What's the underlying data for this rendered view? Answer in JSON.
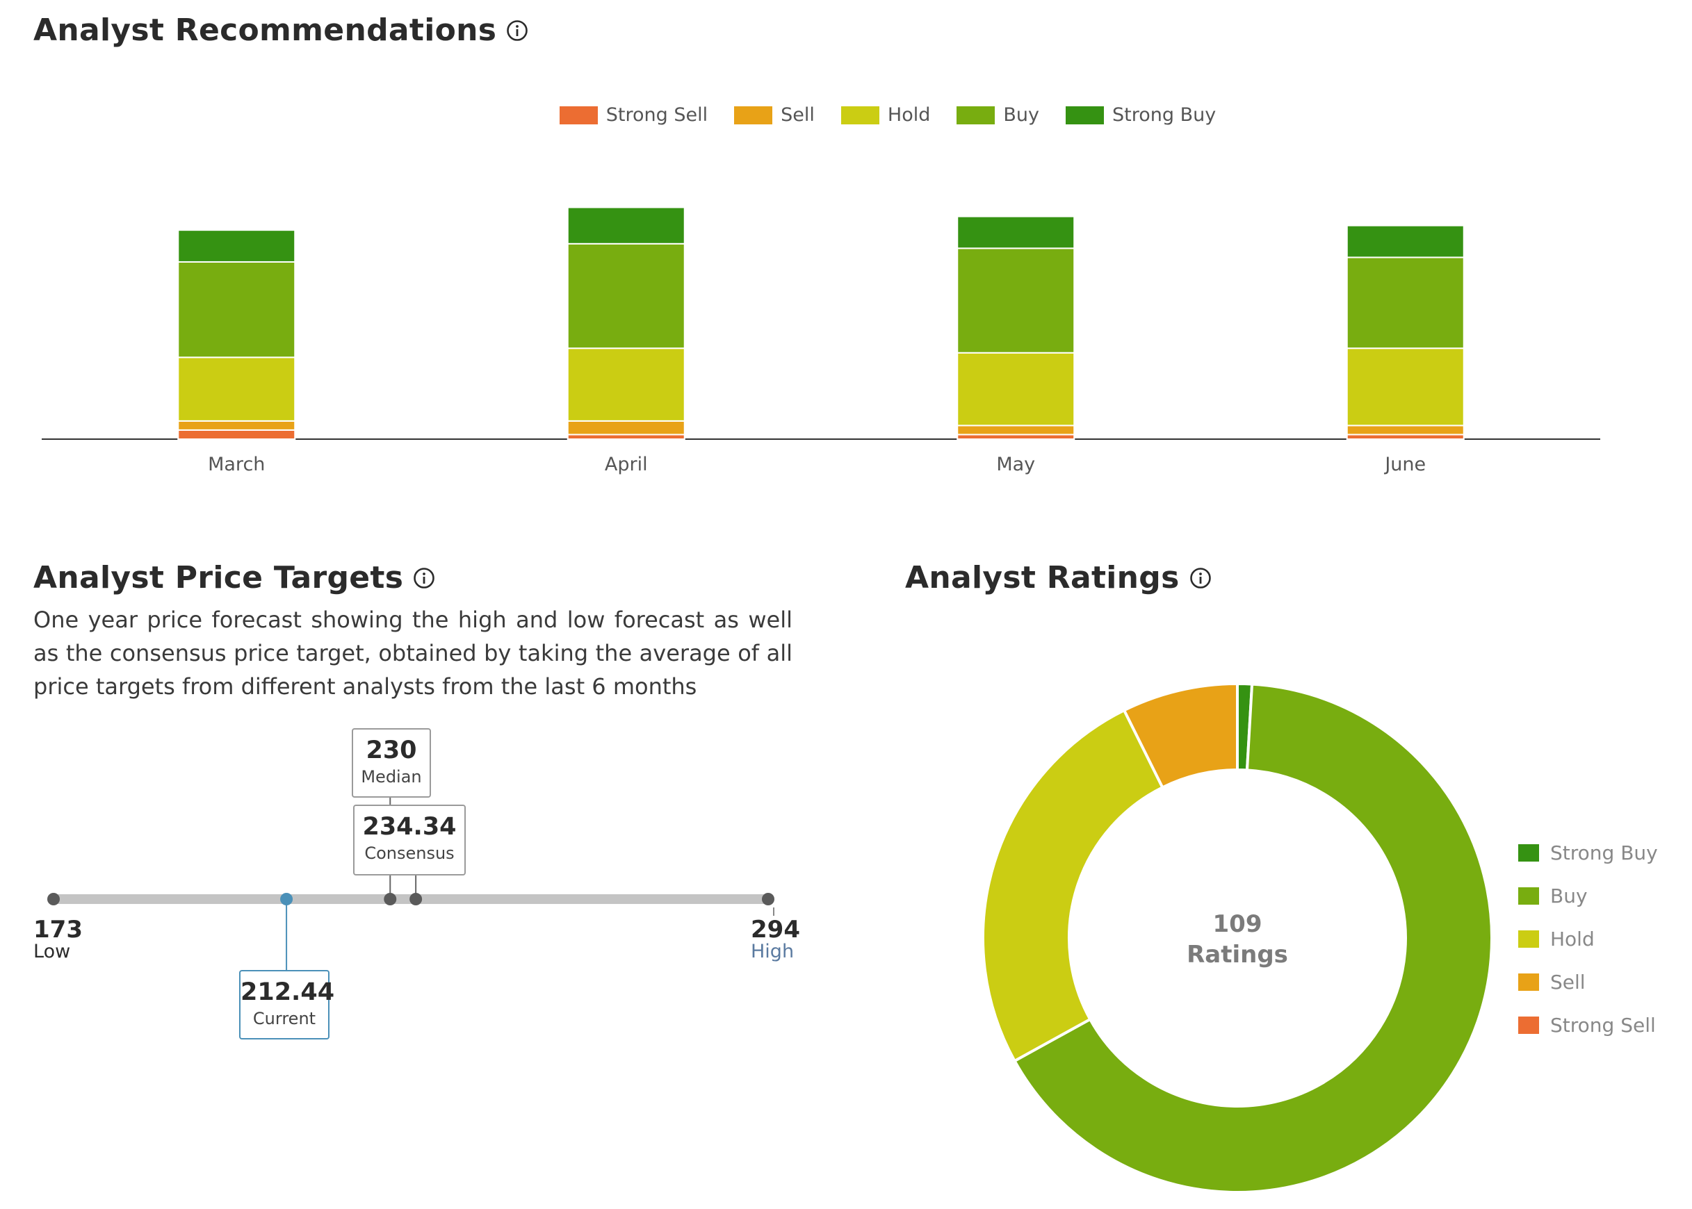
{
  "colors": {
    "strong_sell": "#ec6d32",
    "sell": "#e8a217",
    "hold": "#cbcd13",
    "buy": "#78ad10",
    "strong_buy": "#359212"
  },
  "recommendations": {
    "title": "Analyst Recommendations",
    "legend": [
      "Strong Sell",
      "Sell",
      "Hold",
      "Buy",
      "Strong Buy"
    ]
  },
  "price_targets": {
    "title": "Analyst Price Targets",
    "description": "One year price forecast showing the high and low forecast as well as the consensus price target, obtained by taking the average of all price targets from different analysts from the last 6 months",
    "low": {
      "value": "173",
      "label": "Low"
    },
    "high": {
      "value": "294",
      "label": "High"
    },
    "median": {
      "value": "230",
      "label": "Median"
    },
    "consensus": {
      "value": "234.34",
      "label": "Consensus"
    },
    "current": {
      "value": "212.44",
      "label": "Current"
    }
  },
  "ratings": {
    "title": "Analyst Ratings",
    "total": "109",
    "total_label": "Ratings",
    "legend": [
      "Strong Buy",
      "Buy",
      "Hold",
      "Sell",
      "Strong Sell"
    ]
  },
  "chart_data": [
    {
      "type": "bar",
      "stacked": true,
      "title": "Analyst Recommendations",
      "categories": [
        "March",
        "April",
        "May",
        "June"
      ],
      "series": [
        {
          "name": "Strong Sell",
          "values": [
            2,
            1,
            1,
            1
          ]
        },
        {
          "name": "Sell",
          "values": [
            2,
            3,
            2,
            2
          ]
        },
        {
          "name": "Hold",
          "values": [
            14,
            16,
            16,
            17
          ]
        },
        {
          "name": "Buy",
          "values": [
            21,
            23,
            23,
            20
          ]
        },
        {
          "name": "Strong Buy",
          "values": [
            7,
            8,
            7,
            7
          ]
        }
      ],
      "legend_position": "top",
      "grid": false
    },
    {
      "type": "range",
      "title": "Analyst Price Targets",
      "low": 173,
      "high": 294,
      "median": 230,
      "consensus": 234.34,
      "current": 212.44
    },
    {
      "type": "pie",
      "donut": true,
      "title": "Analyst Ratings",
      "categories": [
        "Strong Buy",
        "Buy",
        "Hold",
        "Sell",
        "Strong Sell"
      ],
      "values": [
        1,
        72,
        28,
        8,
        0
      ],
      "legend_position": "right"
    }
  ]
}
